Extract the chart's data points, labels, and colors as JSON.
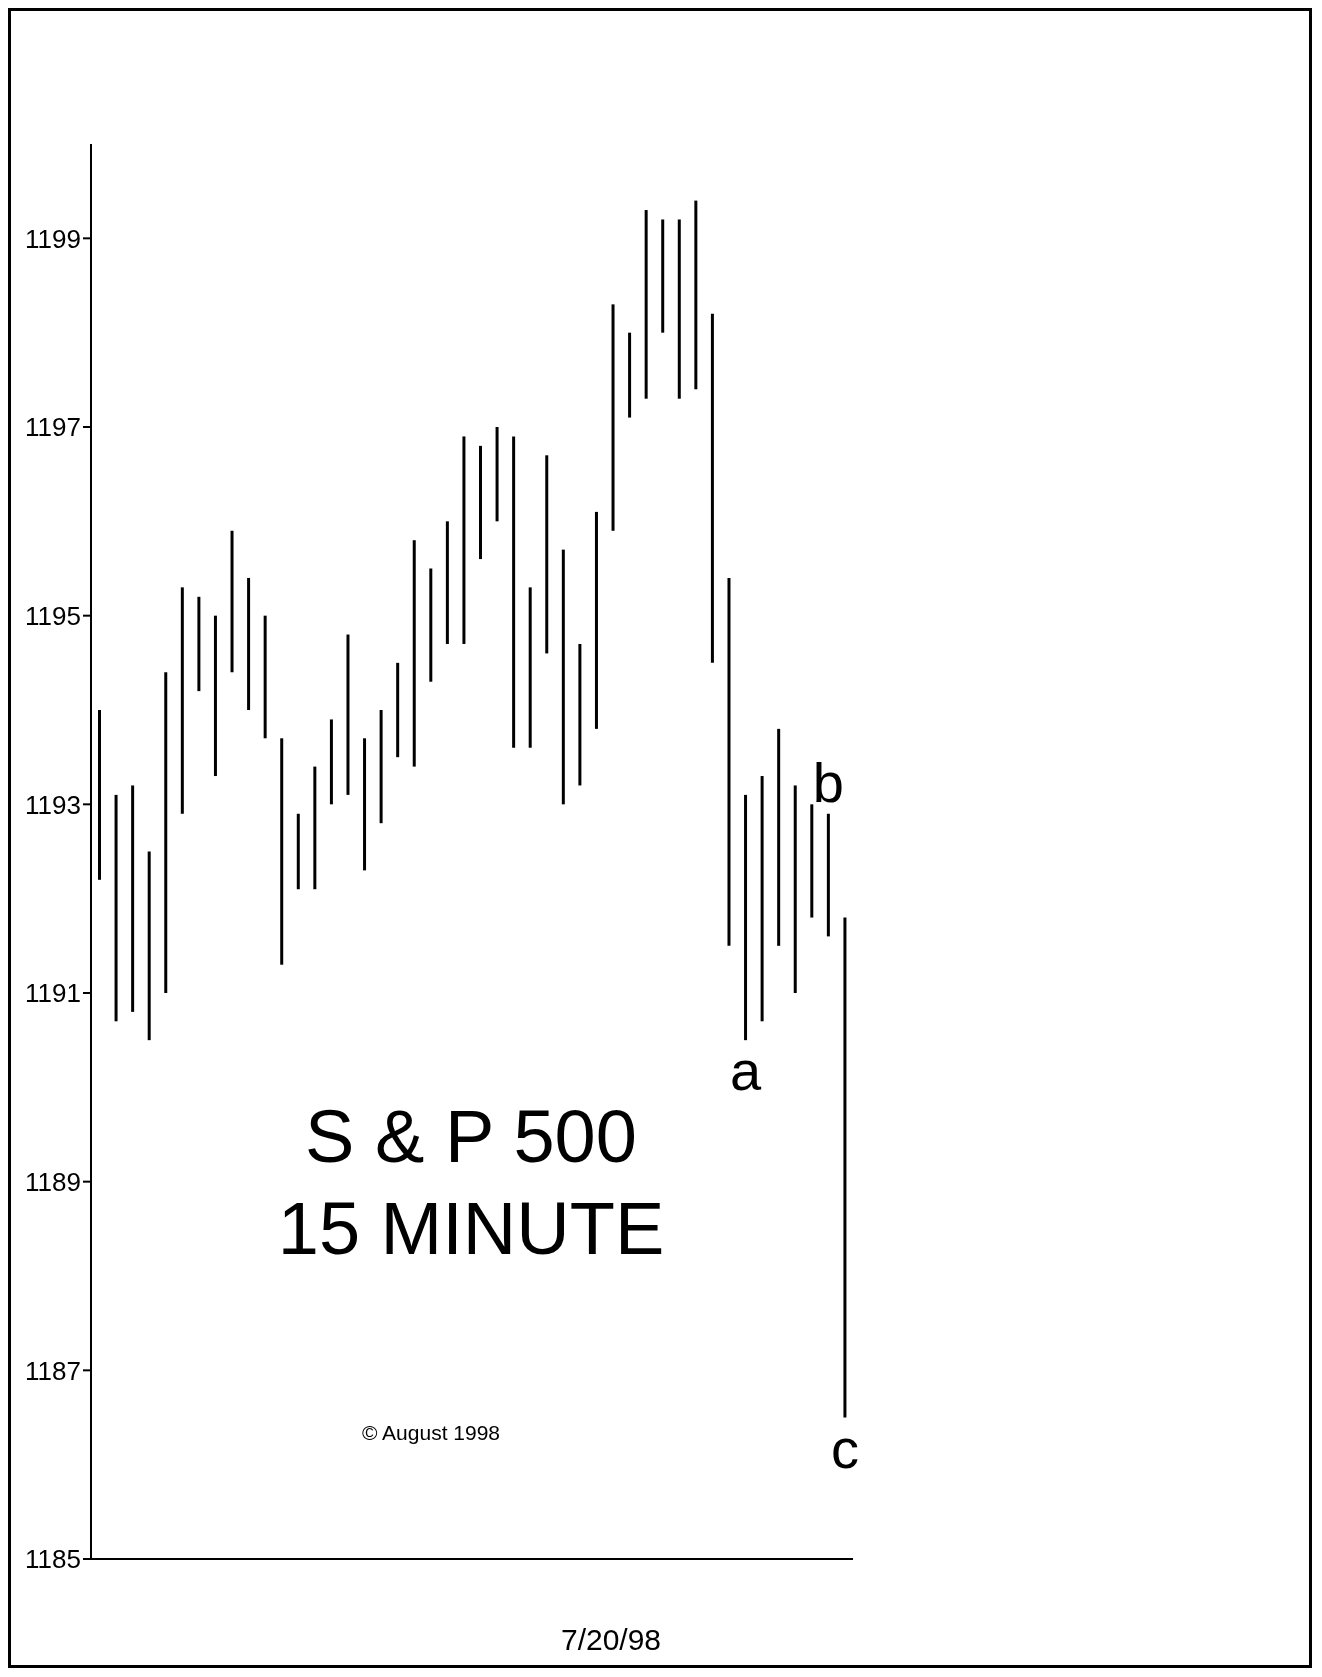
{
  "chart_data": {
    "type": "bar",
    "title": "S & P 500",
    "subtitle": "15 MINUTE",
    "xlabel": "7/20/98",
    "annotations": [
      "© August 1998"
    ],
    "categories": [
      null,
      null,
      null,
      null,
      null,
      null,
      null,
      null,
      null,
      null,
      null,
      null,
      null,
      null,
      null,
      null,
      null,
      null,
      null,
      null,
      null,
      null,
      null,
      null,
      null,
      null,
      null,
      null,
      null,
      null,
      null,
      null,
      null,
      null,
      null,
      null,
      null,
      null,
      null,
      null,
      null,
      null,
      null,
      null,
      null,
      null
    ],
    "base": [
      1192.2,
      1190.7,
      1190.8,
      1190.5,
      1191.0,
      1192.9,
      1194.2,
      1193.3,
      1194.4,
      1194.0,
      1193.7,
      1191.3,
      1192.1,
      1192.1,
      1193.0,
      1193.1,
      1192.3,
      1192.8,
      1193.5,
      1193.4,
      1194.3,
      1194.7,
      1194.7,
      1195.6,
      1196.0,
      1193.6,
      1193.6,
      1194.6,
      1193.0,
      1193.2,
      1193.8,
      1195.9,
      1197.1,
      1197.3,
      1198.0,
      1197.3,
      1197.4,
      1194.5,
      1191.5,
      1190.5,
      1190.7,
      1191.5,
      1191.0,
      1191.8,
      1191.6,
      1186.5
    ],
    "values": [
      1.8,
      2.4,
      2.4,
      2.0,
      3.4,
      2.4,
      1.0,
      1.7,
      1.5,
      1.4,
      1.3,
      2.4,
      0.8,
      1.3,
      0.9,
      1.7,
      1.4,
      1.2,
      1.0,
      2.4,
      1.2,
      1.3,
      2.2,
      1.2,
      1.0,
      3.3,
      1.7,
      2.1,
      2.7,
      1.5,
      2.3,
      2.4,
      0.9,
      2.0,
      1.2,
      1.9,
      2.0,
      3.7,
      3.9,
      2.6,
      2.6,
      2.3,
      2.2,
      1.2,
      1.3,
      5.3
    ],
    "value_labels": [
      null,
      null,
      null,
      null,
      null,
      null,
      null,
      null,
      null,
      null,
      null,
      null,
      null,
      null,
      null,
      null,
      null,
      null,
      null,
      null,
      null,
      null,
      null,
      null,
      null,
      null,
      null,
      null,
      null,
      null,
      null,
      null,
      null,
      null,
      null,
      null,
      null,
      null,
      null,
      "a",
      null,
      null,
      null,
      null,
      "b",
      "c"
    ],
    "color": "#000000",
    "ylim": [
      1185,
      1200
    ],
    "yticks": [
      1185,
      1187,
      1189,
      1191,
      1193,
      1195,
      1197,
      1199
    ],
    "grid": false,
    "legend": false
  }
}
